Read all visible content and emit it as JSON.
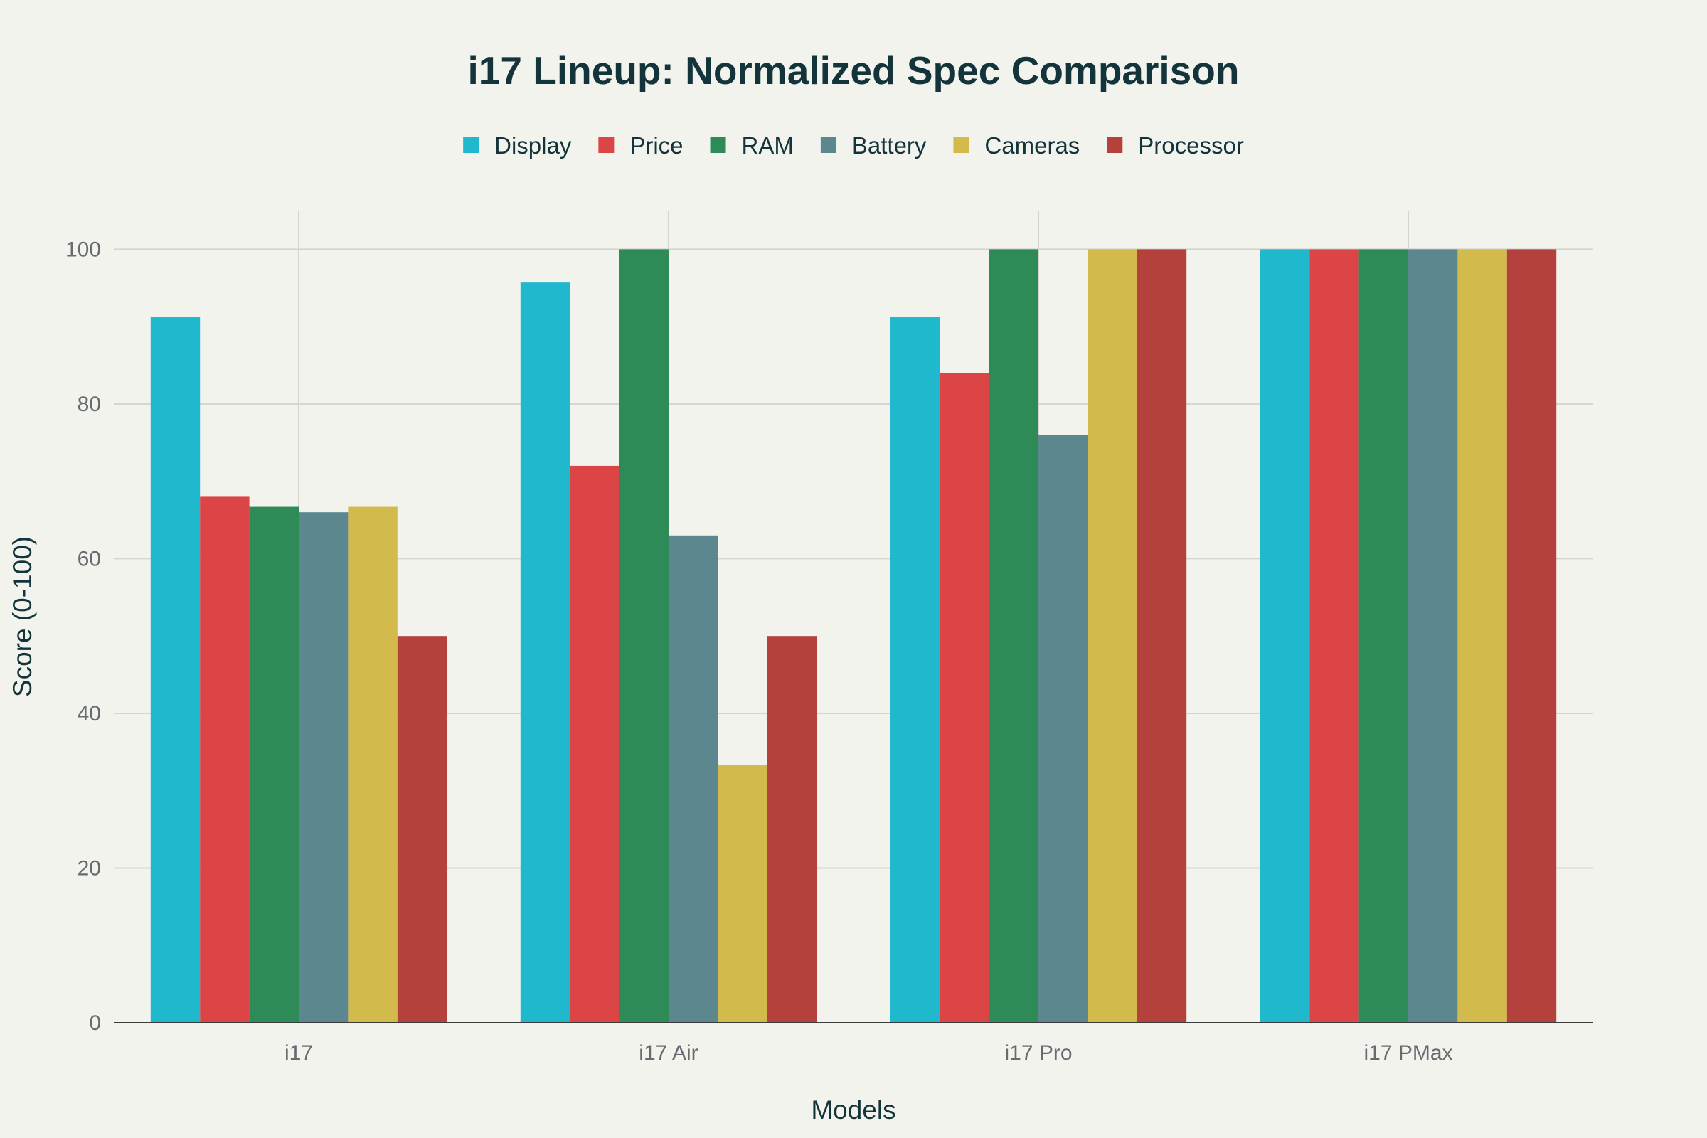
{
  "chart_data": {
    "type": "bar",
    "title": "i17 Lineup: Normalized Spec Comparison",
    "xlabel": "Models",
    "ylabel": "Score (0-100)",
    "categories": [
      "i17",
      "i17 Air",
      "i17 Pro",
      "i17 PMax"
    ],
    "ylim": [
      0,
      105
    ],
    "yticks": [
      0,
      20,
      40,
      60,
      80,
      100
    ],
    "grid": true,
    "legend_position": "top-center",
    "series": [
      {
        "name": "Display",
        "color": "#1fb8cd",
        "values": [
          91.3,
          95.7,
          91.3,
          100
        ]
      },
      {
        "name": "Price",
        "color": "#db4545",
        "values": [
          68,
          72,
          84,
          100
        ]
      },
      {
        "name": "RAM",
        "color": "#2e8b57",
        "values": [
          66.7,
          100,
          100,
          100
        ]
      },
      {
        "name": "Battery",
        "color": "#5d878f",
        "values": [
          66,
          63,
          76,
          100
        ]
      },
      {
        "name": "Cameras",
        "color": "#d2ba4c",
        "values": [
          66.7,
          33.3,
          100,
          100
        ]
      },
      {
        "name": "Processor",
        "color": "#b4413c",
        "values": [
          50,
          50,
          100,
          100
        ]
      }
    ]
  }
}
